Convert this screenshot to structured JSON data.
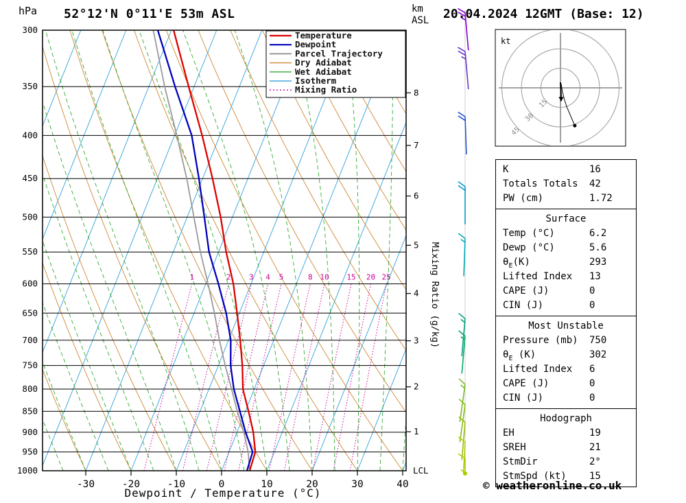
{
  "header": {
    "pressure_unit": "hPa",
    "station_title": "52°12'N 0°11'E 53m ASL",
    "altitude_unit_line1": "km",
    "altitude_unit_line2": "ASL",
    "datetime_title": "20.04.2024 12GMT (Base: 12)"
  },
  "axes": {
    "xlabel": "Dewpoint / Temperature (°C)",
    "right_label": "Mixing Ratio (g/kg)",
    "lcl_label": "LCL",
    "pressure_ticks": [
      300,
      350,
      400,
      450,
      500,
      550,
      600,
      650,
      700,
      750,
      800,
      850,
      900,
      950,
      1000
    ],
    "temp_ticks": [
      -30,
      -20,
      -10,
      0,
      10,
      20,
      30,
      40
    ],
    "km_ticks": [
      {
        "km": 8,
        "p": 356
      },
      {
        "km": 7,
        "p": 411
      },
      {
        "km": 6,
        "p": 472
      },
      {
        "km": 5,
        "p": 540
      },
      {
        "km": 4,
        "p": 616
      },
      {
        "km": 3,
        "p": 701
      },
      {
        "km": 2,
        "p": 795
      },
      {
        "km": 1,
        "p": 899
      }
    ]
  },
  "legend": {
    "items": [
      {
        "label": "Temperature",
        "color": "#dd0000",
        "width": 2.2,
        "dash": "none"
      },
      {
        "label": "Dewpoint",
        "color": "#0000bb",
        "width": 2.2,
        "dash": "none"
      },
      {
        "label": "Parcel Trajectory",
        "color": "#999999",
        "width": 2,
        "dash": "none"
      },
      {
        "label": "Dry Adiabat",
        "color": "#cc8833",
        "width": 1.4,
        "dash": "none"
      },
      {
        "label": "Wet Adiabat",
        "color": "#33aa33",
        "width": 1.4,
        "dash": "none"
      },
      {
        "label": "Isotherm",
        "color": "#44aadd",
        "width": 1.4,
        "dash": "none"
      },
      {
        "label": "Mixing Ratio",
        "color": "#cc0099",
        "width": 1.4,
        "dash": "2 3"
      }
    ]
  },
  "chart_data": {
    "type": "skewT-logP sounding",
    "pressure_hPa": [
      1000,
      950,
      900,
      850,
      800,
      750,
      700,
      650,
      600,
      550,
      500,
      450,
      400,
      350,
      300
    ],
    "temperature_C": [
      6.2,
      5.8,
      3.6,
      0.7,
      -2.5,
      -4.7,
      -7.4,
      -10.5,
      -13.9,
      -18.3,
      -22.6,
      -27.8,
      -33.9,
      -41.2,
      -49.5
    ],
    "dewpoint_C": [
      5.6,
      5.2,
      1.9,
      -1.2,
      -4.5,
      -7.3,
      -9.5,
      -12.9,
      -17.2,
      -22.1,
      -26.2,
      -30.8,
      -36.2,
      -44.2,
      -53.0
    ],
    "parcel_C": [
      6.2,
      4.2,
      1.5,
      -1.8,
      -5.0,
      -8.5,
      -12.0,
      -15.5,
      -19.5,
      -24.0,
      -28.5,
      -33.5,
      -39.5,
      -46.5,
      -54.0
    ],
    "isotherm_step_C": 10,
    "isotherm_range_C": [
      -80,
      40
    ],
    "dry_adiabats_C": [
      -30,
      -20,
      -10,
      0,
      10,
      20,
      30,
      40,
      50,
      60,
      70,
      80,
      90,
      100,
      110,
      120
    ],
    "wet_adiabats_C": [
      -40,
      -35,
      -30,
      -25,
      -20,
      -15,
      -10,
      -5,
      0,
      5,
      10,
      15,
      20,
      25,
      30,
      35,
      40
    ],
    "mixing_ratio_g_kg": [
      1,
      2,
      3,
      4,
      5,
      8,
      10,
      15,
      20,
      25
    ],
    "lcl_pressure_hPa": 1000,
    "wind_barbs": [
      {
        "p": 286,
        "speed_kt": 25,
        "dir_deg": 355,
        "color": "#8800cc"
      },
      {
        "p": 318,
        "speed_kt": 25,
        "dir_deg": 355,
        "color": "#6633cc"
      },
      {
        "p": 380,
        "speed_kt": 20,
        "dir_deg": 358,
        "color": "#2255cc"
      },
      {
        "p": 460,
        "speed_kt": 20,
        "dir_deg": 0,
        "color": "#0095cc"
      },
      {
        "p": 530,
        "speed_kt": 15,
        "dir_deg": 2,
        "color": "#00aabb"
      },
      {
        "p": 660,
        "speed_kt": 15,
        "dir_deg": 5,
        "color": "#00a080"
      },
      {
        "p": 692,
        "speed_kt": 15,
        "dir_deg": 5,
        "color": "#00aa66"
      },
      {
        "p": 790,
        "speed_kt": 15,
        "dir_deg": 8,
        "color": "#77bb22"
      },
      {
        "p": 835,
        "speed_kt": 10,
        "dir_deg": 8,
        "color": "#88bb11"
      },
      {
        "p": 876,
        "speed_kt": 10,
        "dir_deg": 5,
        "color": "#99bb11"
      },
      {
        "p": 925,
        "speed_kt": 10,
        "dir_deg": 3,
        "color": "#aacc00"
      },
      {
        "p": 967,
        "speed_kt": 10,
        "dir_deg": 0,
        "color": "#aacc00"
      },
      {
        "p": 1005,
        "speed_kt": 5,
        "dir_deg": 0,
        "color": "#b3cc00"
      }
    ],
    "surface_dot_color": "#aacc00"
  },
  "hodograph": {
    "unit": "kt",
    "rings_kt": [
      15,
      30,
      45
    ],
    "trace_kt": [
      {
        "u": 0.5,
        "v": 3
      },
      {
        "u": 1.5,
        "v": -3
      },
      {
        "u": 3,
        "v": -9
      },
      {
        "u": 5,
        "v": -15
      },
      {
        "u": 8,
        "v": -22
      },
      {
        "u": 11,
        "v": -29
      }
    ],
    "storm_kt": {
      "u": 0.5,
      "v": -7
    }
  },
  "info": {
    "indices": [
      {
        "label": "K",
        "value": "16"
      },
      {
        "label": "Totals Totals",
        "value": "42"
      },
      {
        "label": "PW (cm)",
        "value": "1.72"
      }
    ],
    "surface": {
      "title": "Surface",
      "rows": [
        {
          "label": "Temp (°C)",
          "value": "6.2"
        },
        {
          "label": "Dewp (°C)",
          "value": "5.6"
        },
        {
          "label": "θ_E(K)",
          "value": "293"
        },
        {
          "label": "Lifted Index",
          "value": "13"
        },
        {
          "label": "CAPE (J)",
          "value": "0"
        },
        {
          "label": "CIN (J)",
          "value": "0"
        }
      ]
    },
    "most_unstable": {
      "title": "Most Unstable",
      "rows": [
        {
          "label": "Pressure (mb)",
          "value": "750"
        },
        {
          "label": "θ_E (K)",
          "value": "302"
        },
        {
          "label": "Lifted Index",
          "value": "6"
        },
        {
          "label": "CAPE (J)",
          "value": "0"
        },
        {
          "label": "CIN (J)",
          "value": "0"
        }
      ]
    },
    "hodograph_box": {
      "title": "Hodograph",
      "rows": [
        {
          "label": "EH",
          "value": "19"
        },
        {
          "label": "SREH",
          "value": "21"
        },
        {
          "label": "StmDir",
          "value": "2°"
        },
        {
          "label": "StmSpd (kt)",
          "value": "15"
        }
      ]
    }
  },
  "footer": {
    "copyright": "© weatheronline.co.uk"
  },
  "colors": {
    "temperature": "#dd0000",
    "dewpoint": "#0000bb",
    "parcel": "#999999",
    "dry_adiabat": "#cc8833",
    "wet_adiabat": "#33aa33",
    "isotherm": "#44aadd",
    "mixing_ratio": "#cc0099",
    "grid": "#000000"
  }
}
